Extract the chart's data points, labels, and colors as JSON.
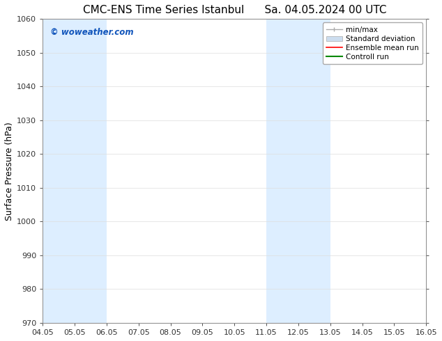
{
  "title_left": "CMC-ENS Time Series Istanbul",
  "title_right": "Sa. 04.05.2024 00 UTC",
  "ylabel": "Surface Pressure (hPa)",
  "xlim_dates": [
    "04.05",
    "05.05",
    "06.05",
    "07.05",
    "08.05",
    "09.05",
    "10.05",
    "11.05",
    "12.05",
    "13.05",
    "14.05",
    "15.05",
    "16.05"
  ],
  "xtick_positions": [
    0,
    1,
    2,
    3,
    4,
    5,
    6,
    7,
    8,
    9,
    10,
    11,
    12
  ],
  "ylim": [
    970,
    1060
  ],
  "yticks": [
    970,
    980,
    990,
    1000,
    1010,
    1020,
    1030,
    1040,
    1050,
    1060
  ],
  "shaded_regions": [
    {
      "x_start": 0,
      "x_end": 1,
      "color": "#ddeeff"
    },
    {
      "x_start": 1,
      "x_end": 2,
      "color": "#ddeeff"
    },
    {
      "x_start": 7,
      "x_end": 8,
      "color": "#ddeeff"
    },
    {
      "x_start": 8,
      "x_end": 9,
      "color": "#ddeeff"
    }
  ],
  "legend_entries": [
    {
      "label": "min/max",
      "color": "#aaaaaa",
      "lw": 1.0,
      "style": "line_with_markers"
    },
    {
      "label": "Standard deviation",
      "color": "#ccddef",
      "lw": 6,
      "style": "thick"
    },
    {
      "label": "Ensemble mean run",
      "color": "#ff0000",
      "lw": 1.2,
      "style": "solid"
    },
    {
      "label": "Controll run",
      "color": "#008800",
      "lw": 1.5,
      "style": "solid"
    }
  ],
  "watermark_text": "© woweather.com",
  "watermark_color": "#1155bb",
  "bg_color": "#ffffff",
  "plot_bg_color": "#ffffff",
  "grid_color": "#dddddd",
  "title_fontsize": 11,
  "tick_fontsize": 8,
  "ylabel_fontsize": 9
}
